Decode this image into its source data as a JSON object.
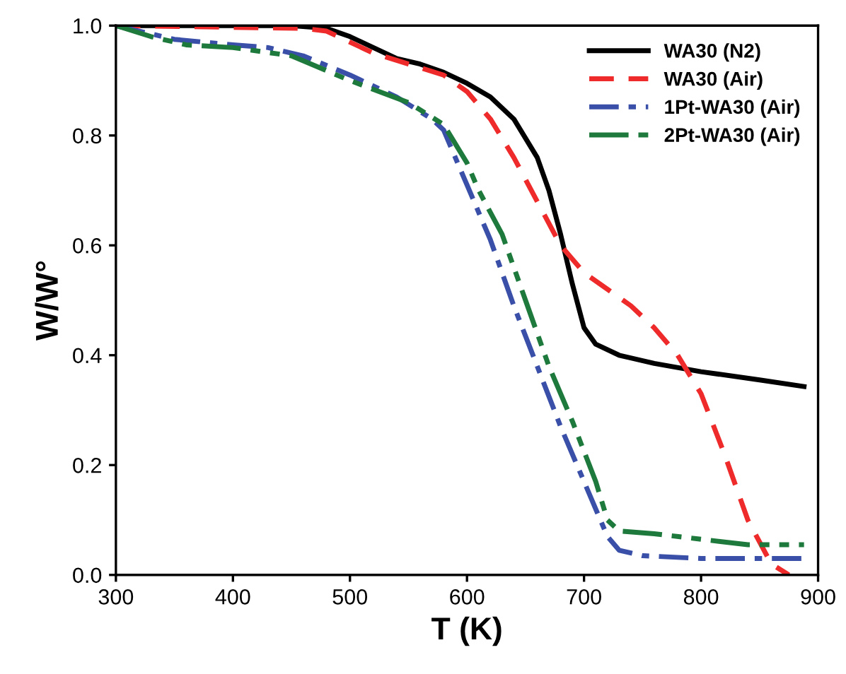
{
  "chart_data": {
    "type": "line",
    "xlabel": "T (K)",
    "ylabel": "W/W°",
    "xlim": [
      300,
      900
    ],
    "ylim": [
      0.0,
      1.0
    ],
    "xticks": [
      300,
      400,
      500,
      600,
      700,
      800,
      900
    ],
    "yticks": [
      {
        "value": 0.0,
        "label": "0.0"
      },
      {
        "value": 0.2,
        "label": "0.2"
      },
      {
        "value": 0.4,
        "label": "0.4"
      },
      {
        "value": 0.6,
        "label": "0.6"
      },
      {
        "value": 0.8,
        "label": "0.8"
      },
      {
        "value": 1.0,
        "label": "1.0"
      }
    ],
    "grid": false,
    "legend": "top right",
    "marker": "none",
    "series": [
      {
        "name": "WA30 (N2)",
        "color": "#000000",
        "line_style": "solid",
        "x": [
          300,
          450,
          480,
          500,
          520,
          540,
          560,
          580,
          600,
          620,
          640,
          660,
          670,
          680,
          690,
          700,
          710,
          730,
          760,
          800,
          850,
          888
        ],
        "values": [
          1.0,
          1.0,
          0.995,
          0.98,
          0.96,
          0.94,
          0.93,
          0.915,
          0.895,
          0.87,
          0.83,
          0.76,
          0.7,
          0.62,
          0.53,
          0.45,
          0.42,
          0.4,
          0.385,
          0.37,
          0.355,
          0.343
        ]
      },
      {
        "name": "WA30 (Air)",
        "color": "#ee2a2a",
        "line_style": "dashed",
        "x": [
          300,
          460,
          480,
          500,
          520,
          550,
          580,
          600,
          620,
          640,
          660,
          680,
          700,
          720,
          740,
          760,
          780,
          800,
          820,
          840,
          860,
          875
        ],
        "values": [
          1.0,
          0.995,
          0.99,
          0.97,
          0.95,
          0.93,
          0.91,
          0.88,
          0.83,
          0.76,
          0.68,
          0.6,
          0.55,
          0.52,
          0.49,
          0.45,
          0.4,
          0.33,
          0.22,
          0.1,
          0.02,
          0.0
        ]
      },
      {
        "name": "1Pt-WA30 (Air)",
        "color": "#3a4fa8",
        "line_style": "dashdot",
        "x": [
          300,
          320,
          350,
          400,
          430,
          460,
          500,
          540,
          570,
          580,
          590,
          600,
          620,
          640,
          660,
          680,
          700,
          720,
          730,
          750,
          800,
          888
        ],
        "values": [
          1.0,
          0.99,
          0.975,
          0.965,
          0.96,
          0.945,
          0.91,
          0.87,
          0.83,
          0.81,
          0.76,
          0.71,
          0.61,
          0.49,
          0.38,
          0.27,
          0.17,
          0.07,
          0.045,
          0.035,
          0.03,
          0.03
        ]
      },
      {
        "name": "2Pt-WA30 (Air)",
        "color": "#1e7a3c",
        "line_style": "dashdotdot",
        "x": [
          300,
          330,
          360,
          400,
          450,
          500,
          550,
          580,
          600,
          610,
          630,
          650,
          670,
          690,
          710,
          720,
          730,
          760,
          800,
          840,
          888
        ],
        "values": [
          1.0,
          0.98,
          0.965,
          0.96,
          0.945,
          0.9,
          0.86,
          0.82,
          0.75,
          0.7,
          0.62,
          0.5,
          0.38,
          0.28,
          0.17,
          0.1,
          0.08,
          0.075,
          0.065,
          0.055,
          0.055
        ]
      }
    ]
  }
}
